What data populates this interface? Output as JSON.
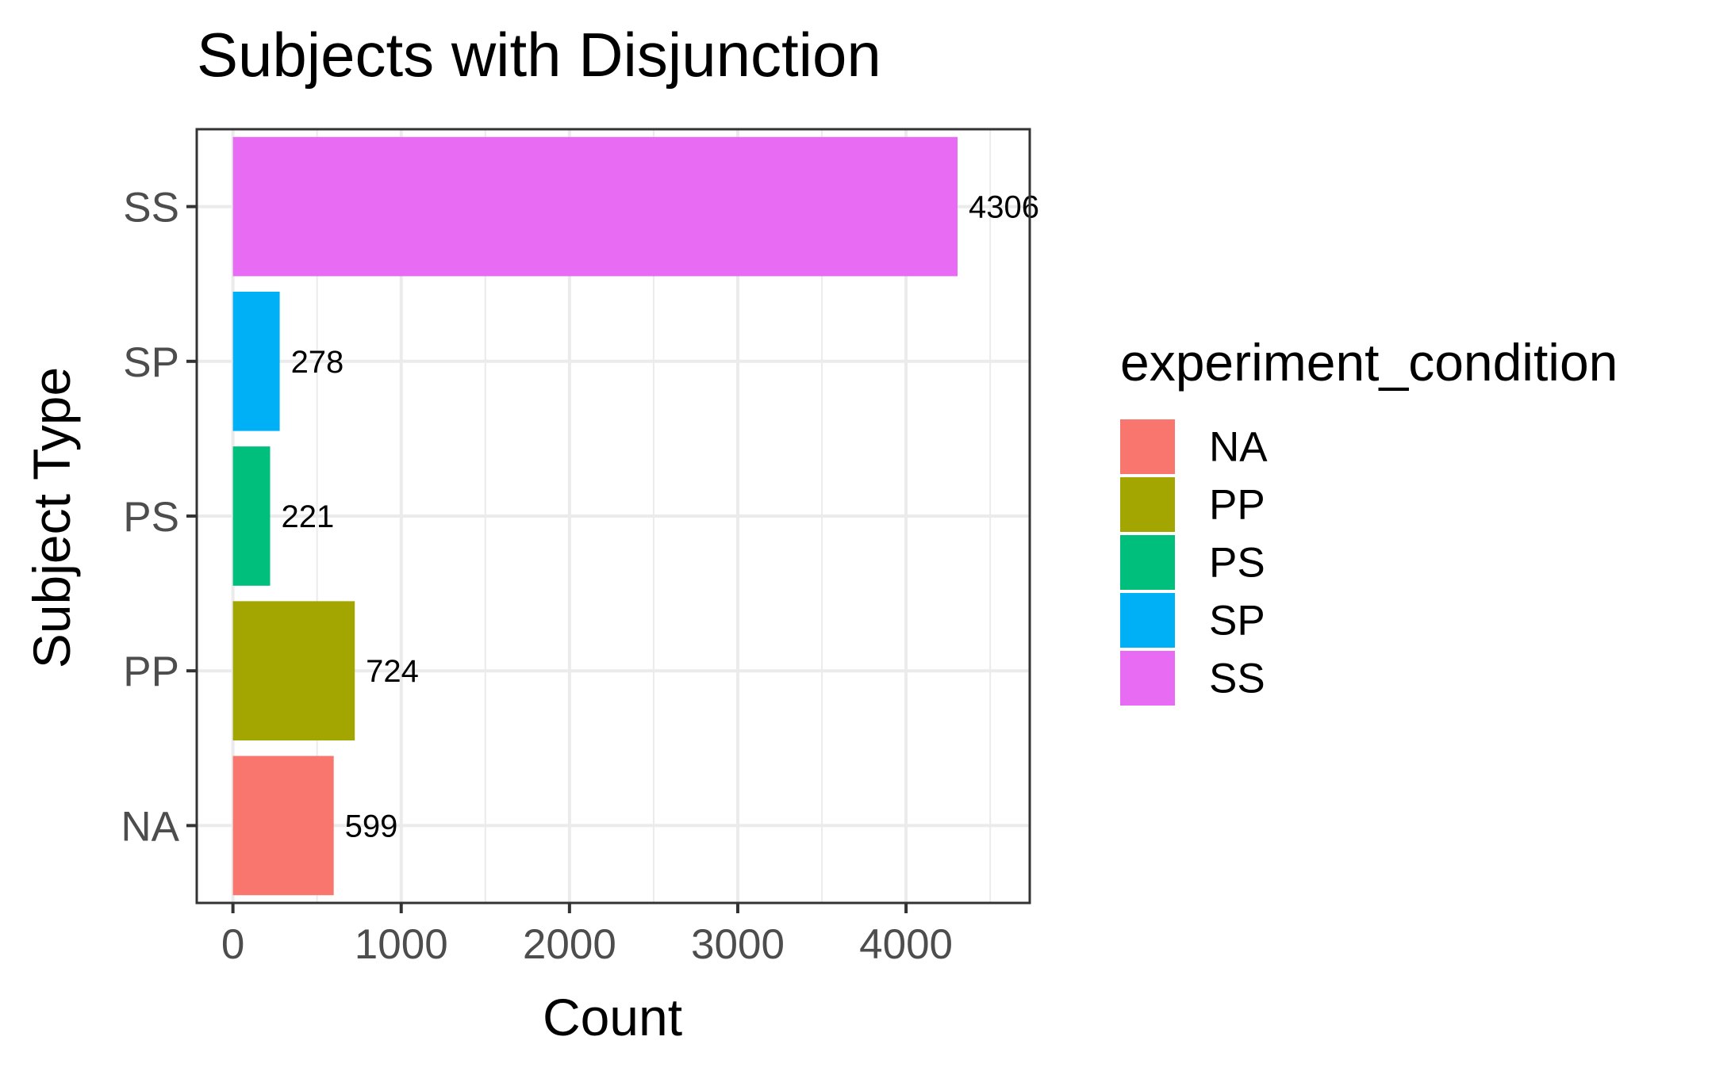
{
  "chart_data": {
    "type": "bar",
    "orientation": "horizontal",
    "title": "Subjects with Disjunction",
    "xlabel": "Count",
    "ylabel": "Subject Type",
    "categories": [
      "NA",
      "PP",
      "PS",
      "SP",
      "SS"
    ],
    "values": [
      599,
      724,
      221,
      278,
      4306
    ],
    "data_labels": [
      "599",
      "724",
      "221",
      "278",
      "4306"
    ],
    "colors": [
      "#F8766D",
      "#A3A500",
      "#00BF7D",
      "#00B0F6",
      "#E76BF3"
    ],
    "xlim": [
      -215,
      4735
    ],
    "xticks": [
      0,
      1000,
      2000,
      3000,
      4000
    ],
    "xtick_labels": [
      "0",
      "1000",
      "2000",
      "3000",
      "4000"
    ],
    "x_minor_gridlines": [
      500,
      1500,
      2500,
      3500,
      4500
    ],
    "grid": true,
    "legend": {
      "title": "experiment_condition",
      "placement": "right",
      "items": [
        "NA",
        "PP",
        "PS",
        "SP",
        "SS"
      ]
    }
  }
}
